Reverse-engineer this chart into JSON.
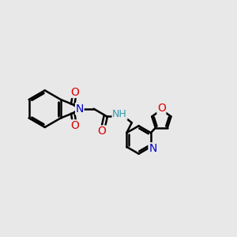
{
  "bg_color": "#e8e8e8",
  "bond_color": "#000000",
  "bond_width": 1.8,
  "N_color": "#0000cc",
  "O_color": "#dd0000",
  "H_color": "#3399aa",
  "font_size": 10,
  "fig_size": [
    3.0,
    3.0
  ],
  "dpi": 100,
  "xlim": [
    0,
    12
  ],
  "ylim": [
    0,
    11
  ]
}
